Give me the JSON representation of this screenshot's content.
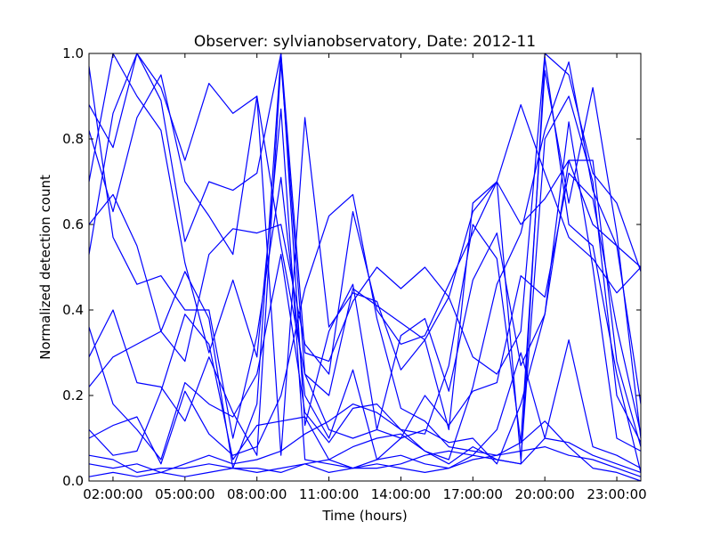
{
  "chart_data": {
    "type": "line",
    "title": "Observer: sylvianobservatory, Date: 2012-11",
    "xlabel": "Time (hours)",
    "ylabel": "Normalized detection count",
    "xlim": [
      "01:00:00",
      "24:00:00"
    ],
    "ylim": [
      0.0,
      1.0
    ],
    "x_ticks": [
      "02:00:00",
      "05:00:00",
      "08:00:00",
      "11:00:00",
      "14:00:00",
      "17:00:00",
      "20:00:00",
      "23:00:00"
    ],
    "y_ticks": [
      "0.0",
      "0.2",
      "0.4",
      "0.6",
      "0.8",
      "1.0"
    ],
    "grid": false,
    "line_color": "#0000ff",
    "x": [
      "01:00:00",
      "02:00:00",
      "03:00:00",
      "04:00:00",
      "05:00:00",
      "06:00:00",
      "07:00:00",
      "08:00:00",
      "09:00:00",
      "10:00:00",
      "11:00:00",
      "12:00:00",
      "13:00:00",
      "14:00:00",
      "15:00:00",
      "16:00:00",
      "17:00:00",
      "18:00:00",
      "19:00:00",
      "20:00:00",
      "21:00:00",
      "22:00:00",
      "23:00:00",
      "24:00:00"
    ],
    "series": [
      {
        "values": [
          0.88,
          0.78,
          1.0,
          0.92,
          0.75,
          0.93,
          0.86,
          0.9,
          0.06,
          0.85,
          0.36,
          0.44,
          0.42,
          0.26,
          0.33,
          0.43,
          0.63,
          0.7,
          0.88,
          0.72,
          0.57,
          0.52,
          0.44,
          0.5
        ]
      },
      {
        "values": [
          0.53,
          0.86,
          1.0,
          0.89,
          0.56,
          0.7,
          0.68,
          0.72,
          1.0,
          0.3,
          0.28,
          0.42,
          0.5,
          0.45,
          0.5,
          0.43,
          0.29,
          0.25,
          0.35,
          1.0,
          0.95,
          0.72,
          0.65,
          0.49
        ]
      },
      {
        "values": [
          0.6,
          0.67,
          0.55,
          0.35,
          0.28,
          0.53,
          0.59,
          0.58,
          0.6,
          0.32,
          0.25,
          0.63,
          0.4,
          0.32,
          0.34,
          0.46,
          0.58,
          0.7,
          0.6,
          0.66,
          0.75,
          0.6,
          0.55,
          0.5
        ]
      },
      {
        "values": [
          0.82,
          0.63,
          0.85,
          0.95,
          0.7,
          0.62,
          0.53,
          0.9,
          0.55,
          0.25,
          0.2,
          0.45,
          0.41,
          0.37,
          0.33,
          0.12,
          0.65,
          0.7,
          0.05,
          0.8,
          0.9,
          0.7,
          0.2,
          0.09
        ]
      },
      {
        "values": [
          0.36,
          0.18,
          0.12,
          0.05,
          0.23,
          0.18,
          0.15,
          0.25,
          0.53,
          0.16,
          0.09,
          0.17,
          0.18,
          0.12,
          0.11,
          0.27,
          0.6,
          0.52,
          0.09,
          0.96,
          0.65,
          0.92,
          0.58,
          0.1
        ]
      },
      {
        "values": [
          0.12,
          0.06,
          0.07,
          0.21,
          0.39,
          0.32,
          0.05,
          0.13,
          0.14,
          0.15,
          0.05,
          0.08,
          0.1,
          0.11,
          0.07,
          0.05,
          0.22,
          0.46,
          0.58,
          0.82,
          0.98,
          0.68,
          0.55,
          0.18
        ]
      },
      {
        "values": [
          0.04,
          0.03,
          0.04,
          0.02,
          0.04,
          0.06,
          0.04,
          0.05,
          0.07,
          0.11,
          0.14,
          0.18,
          0.16,
          0.12,
          0.07,
          0.04,
          0.08,
          0.05,
          0.04,
          0.99,
          0.6,
          0.55,
          0.25,
          0.02
        ]
      },
      {
        "values": [
          0.01,
          0.02,
          0.01,
          0.02,
          0.01,
          0.02,
          0.03,
          0.02,
          0.03,
          0.04,
          0.02,
          0.03,
          0.04,
          0.03,
          0.02,
          0.03,
          0.05,
          0.06,
          0.07,
          0.08,
          0.06,
          0.05,
          0.03,
          0.01
        ]
      },
      {
        "values": [
          0.29,
          0.4,
          0.23,
          0.22,
          0.14,
          0.29,
          0.16,
          0.06,
          0.98,
          0.25,
          0.12,
          0.1,
          0.12,
          0.1,
          0.12,
          0.09,
          0.1,
          0.04,
          0.18,
          0.39,
          0.84,
          0.5,
          0.1,
          0.07
        ]
      },
      {
        "values": [
          0.7,
          1.0,
          0.9,
          0.82,
          0.51,
          0.3,
          0.47,
          0.29,
          0.87,
          0.05,
          0.04,
          0.03,
          0.05,
          0.06,
          0.04,
          0.03,
          0.06,
          0.12,
          0.3,
          0.1,
          0.33,
          0.08,
          0.06,
          0.03
        ]
      },
      {
        "values": [
          0.1,
          0.13,
          0.15,
          0.04,
          0.21,
          0.11,
          0.06,
          0.08,
          0.2,
          0.45,
          0.62,
          0.67,
          0.38,
          0.17,
          0.14,
          0.08,
          0.07,
          0.06,
          0.09,
          0.14,
          0.08,
          0.03,
          0.02,
          0.0
        ]
      },
      {
        "values": [
          0.06,
          0.05,
          0.02,
          0.03,
          0.03,
          0.04,
          0.03,
          0.03,
          0.02,
          0.04,
          0.05,
          0.03,
          0.03,
          0.04,
          0.06,
          0.07,
          0.06,
          0.05,
          0.04,
          0.1,
          0.09,
          0.06,
          0.04,
          0.02
        ]
      },
      {
        "values": [
          0.97,
          0.57,
          0.46,
          0.48,
          0.4,
          0.4,
          0.1,
          0.34,
          0.71,
          0.2,
          0.1,
          0.26,
          0.05,
          0.1,
          0.2,
          0.13,
          0.21,
          0.23,
          0.48,
          0.43,
          0.72,
          0.66,
          0.36,
          0.11
        ]
      },
      {
        "values": [
          0.22,
          0.29,
          0.32,
          0.35,
          0.49,
          0.38,
          0.03,
          0.18,
          1.0,
          0.13,
          0.35,
          0.46,
          0.12,
          0.34,
          0.38,
          0.21,
          0.47,
          0.58,
          0.27,
          0.39,
          0.75,
          0.75,
          0.28,
          0.08
        ]
      }
    ]
  }
}
